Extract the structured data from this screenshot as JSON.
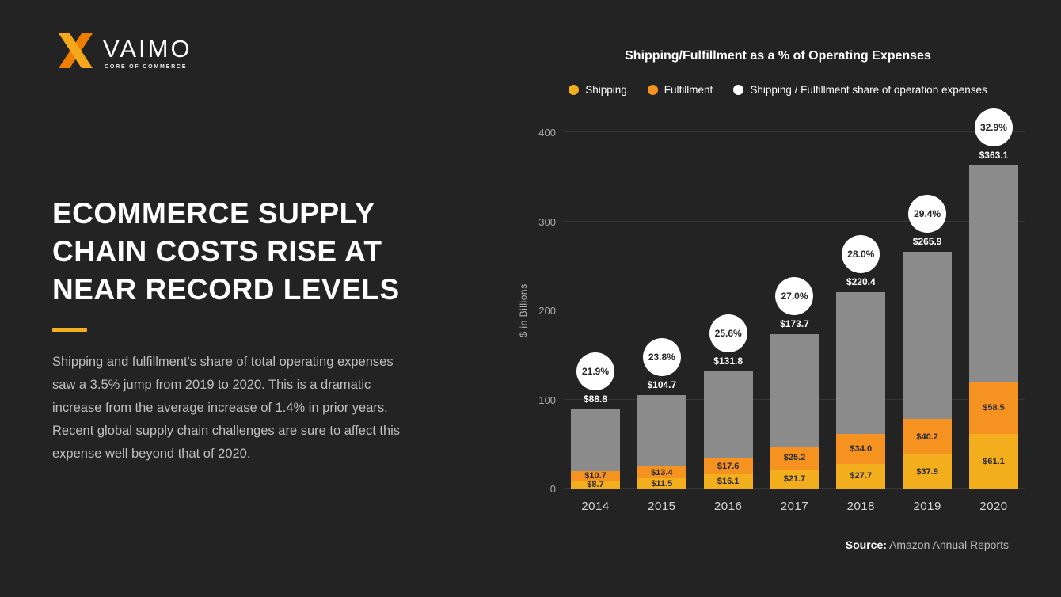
{
  "colors": {
    "bg": "#232323",
    "accent": "#f2b01f"
  },
  "brand": {
    "name": "VAIMO",
    "tagline": "CORE OF COMMERCE"
  },
  "headline": {
    "lines": [
      "ECOMMERCE SUPPLY",
      "CHAIN COSTS RISE AT",
      "NEAR RECORD LEVELS"
    ]
  },
  "paragraph": "Shipping and fulfillment's share of total operating expenses saw a 3.5% jump from 2019 to 2020. This is a dramatic increase from the average increase of 1.4% in prior years. Recent global supply chain challenges are sure to affect this expense well beyond that of 2020.",
  "chart_data": {
    "type": "bar",
    "title": "Shipping/Fulfillment as a % of Operating Expenses",
    "xlabel": "",
    "ylabel": "$ in Billions",
    "ylim": [
      0,
      400
    ],
    "yticks": [
      0,
      100,
      200,
      300,
      400
    ],
    "categories": [
      "2014",
      "2015",
      "2016",
      "2017",
      "2018",
      "2019",
      "2020"
    ],
    "series": [
      {
        "name": "Shipping",
        "color": "#f2ae1c",
        "values": [
          8.7,
          11.5,
          16.1,
          21.7,
          27.7,
          37.9,
          61.1
        ],
        "labels": [
          "$8.7",
          "$11.5",
          "$16.1",
          "$21.7",
          "$27.7",
          "$37.9",
          "$61.1"
        ]
      },
      {
        "name": "Fulfillment",
        "color": "#f69220",
        "values": [
          10.7,
          13.4,
          17.6,
          25.2,
          34.0,
          40.2,
          58.5
        ],
        "labels": [
          "$10.7",
          "$13.4",
          "$17.6",
          "$25.2",
          "$34.0",
          "$40.2",
          "$58.5"
        ]
      }
    ],
    "rest_color": "#8b8b8b",
    "totals": [
      88.8,
      104.7,
      131.8,
      173.7,
      220.4,
      265.9,
      363.1
    ],
    "total_labels": [
      "$88.8",
      "$104.7",
      "$131.8",
      "$173.7",
      "$220.4",
      "$265.9",
      "$363.1"
    ],
    "share_percent": [
      "21.9%",
      "23.8%",
      "25.6%",
      "27.0%",
      "28.0%",
      "29.4%",
      "32.9%"
    ],
    "legend": [
      {
        "label": "Shipping",
        "color": "#f2ae1c"
      },
      {
        "label": "Fulfillment",
        "color": "#f69220"
      },
      {
        "label": "Shipping / Fulfillment share of operation expenses",
        "color": "#ffffff"
      }
    ],
    "grid": true,
    "legend_position": "top"
  },
  "source": {
    "label": "Source:",
    "text": " Amazon Annual Reports"
  }
}
